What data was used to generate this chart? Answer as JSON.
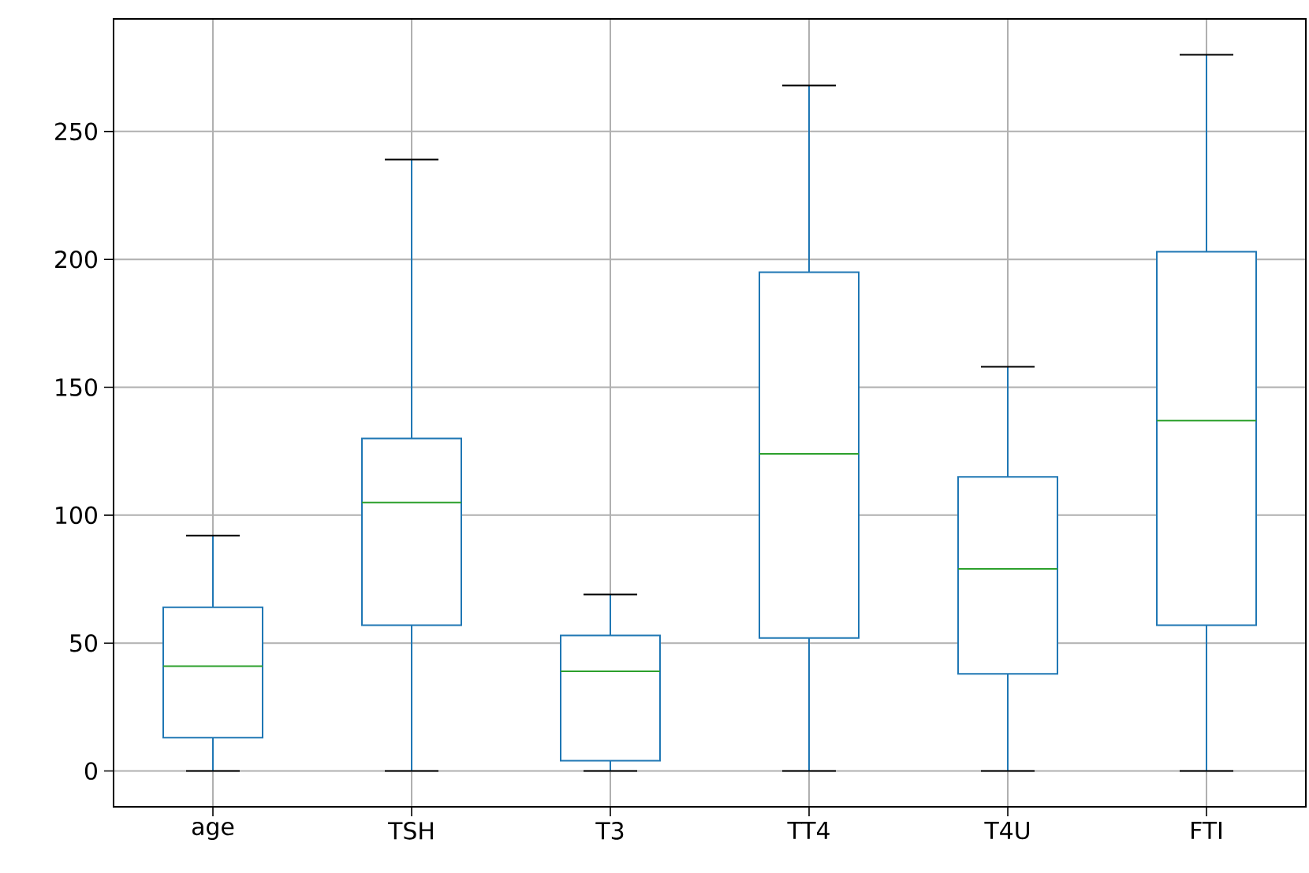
{
  "chart_data": {
    "type": "box",
    "categories": [
      "age",
      "TSH",
      "T3",
      "TT4",
      "T4U",
      "FTI"
    ],
    "boxes": [
      {
        "low": 0,
        "q1": 13,
        "median": 41,
        "q3": 64,
        "high": 92
      },
      {
        "low": 0,
        "q1": 57,
        "median": 105,
        "q3": 130,
        "high": 239
      },
      {
        "low": 0,
        "q1": 4,
        "median": 39,
        "q3": 53,
        "high": 69
      },
      {
        "low": 0,
        "q1": 52,
        "median": 124,
        "q3": 195,
        "high": 268
      },
      {
        "low": 0,
        "q1": 38,
        "median": 79,
        "q3": 115,
        "high": 158
      },
      {
        "low": 0,
        "q1": 57,
        "median": 137,
        "q3": 203,
        "high": 280
      }
    ],
    "color": "#1f77b4",
    "ylim": [
      -14,
      294
    ],
    "yticks": [
      0,
      50,
      100,
      150,
      200,
      250
    ],
    "grid": true
  }
}
